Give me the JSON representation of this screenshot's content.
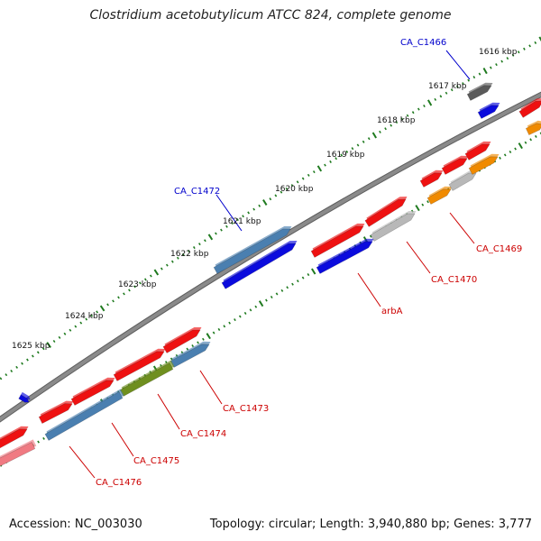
{
  "title": "Clostridium acetobutylicum ATCC 824, complete genome",
  "footer": {
    "accession": "Accession: NC_003030",
    "stats": "Topology: circular; Length: 3,940,880 bp; Genes: 3,777"
  },
  "colors": {
    "backbone": "#8a8a8a",
    "tick": "#1f7a1f",
    "gene_red": "#ee1111",
    "gene_blue": "#0b0bdd",
    "gene_steel": "#4a7fb0",
    "gene_gray": "#b8b8b8",
    "gene_darkgray": "#5a5a5a",
    "gene_orange": "#f08a00",
    "gene_olive": "#6f8f1f",
    "gene_pink": "#f07a82",
    "label_red": "#cc0000",
    "label_blue": "#0000cc"
  },
  "kbp_labels": [
    "1616 kbp",
    "1617 kbp",
    "1618 kbp",
    "1619 kbp",
    "1620 kbp",
    "1621 kbp",
    "1622 kbp",
    "1623 kbp",
    "1624 kbp",
    "1625 kbp"
  ],
  "gene_labels": [
    {
      "text": "CA_C1466",
      "color": "blue"
    },
    {
      "text": "CA_C1472",
      "color": "blue"
    },
    {
      "text": "CA_C1469",
      "color": "red"
    },
    {
      "text": "CA_C1470",
      "color": "red"
    },
    {
      "text": "arbA",
      "color": "red"
    },
    {
      "text": "CA_C1473",
      "color": "red"
    },
    {
      "text": "CA_C1474",
      "color": "red"
    },
    {
      "text": "CA_C1475",
      "color": "red"
    },
    {
      "text": "CA_C1476",
      "color": "red"
    }
  ]
}
